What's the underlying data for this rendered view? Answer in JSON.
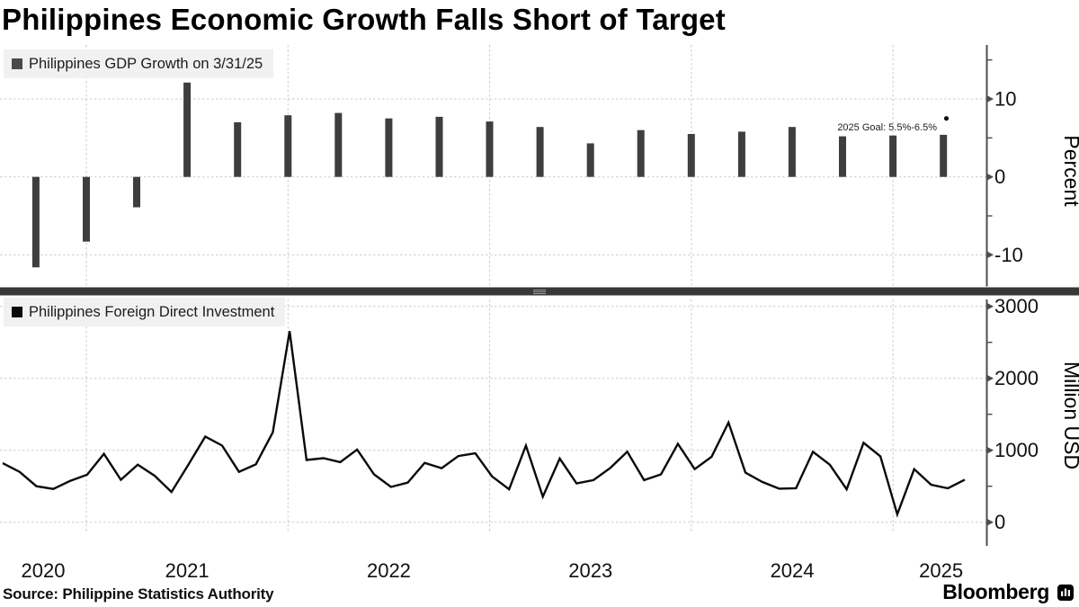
{
  "title": "Philippines Economic Growth Falls Short of Target",
  "source_note": "Source: Philippine Statistics Authority",
  "branding": {
    "logo_text": "Bloomberg",
    "logo_icon": "bar-chart-icon"
  },
  "x_axis": {
    "years": [
      "2020",
      "2021",
      "2022",
      "2023",
      "2024",
      "2025"
    ]
  },
  "colors": {
    "bar": "#3e3e3e",
    "line": "#0a0a0a",
    "gdp_swatch": "#4a4a4a",
    "fdi_swatch": "#0a0a0a",
    "axis": "#4d4d4d",
    "gridline": "#cbcbcb",
    "tick_text": "#111111",
    "legend_bg": "#f0f0f0",
    "divider": "#383838",
    "divider_grip": "#9a9a9a",
    "annotation_text": "#222222"
  },
  "chart_data": [
    {
      "type": "bar",
      "panel": "top",
      "legend": "Philippines GDP Growth on 3/31/25",
      "ylabel": "Percent",
      "ylim": [
        -14.5,
        17
      ],
      "yticks": [
        10,
        0,
        -10
      ],
      "ytick_labels": [
        "10",
        "0",
        "-10"
      ],
      "yticks_minor": [
        15,
        5,
        -5
      ],
      "grid": true,
      "categories": [
        "Q3 2020",
        "Q4 2020",
        "Q1 2021",
        "Q2 2021",
        "Q3 2021",
        "Q4 2021",
        "Q1 2022",
        "Q2 2022",
        "Q3 2022",
        "Q4 2022",
        "Q1 2023",
        "Q2 2023",
        "Q3 2023",
        "Q4 2023",
        "Q1 2024",
        "Q2 2024",
        "Q3 2024",
        "Q4 2024",
        "Q1 2025"
      ],
      "values": [
        -11.6,
        -8.3,
        -3.9,
        12.1,
        7.0,
        7.9,
        8.2,
        7.5,
        7.7,
        7.1,
        6.4,
        4.3,
        6.0,
        5.5,
        5.8,
        6.4,
        5.2,
        5.3,
        5.4
      ],
      "annotation": {
        "text": "2025 Goal: 5.5%-6.5%",
        "dot_value_pct": 7.5
      }
    },
    {
      "type": "line",
      "panel": "bottom",
      "legend": "Philippines Foreign Direct Investment",
      "ylabel": "Million USD",
      "ylim": [
        -340,
        3100
      ],
      "yticks": [
        3000,
        2000,
        1000,
        0
      ],
      "ytick_labels": [
        "3000",
        "2000",
        "1000",
        "0"
      ],
      "yticks_minor": [
        2500,
        1500,
        500
      ],
      "grid": true,
      "x_span": "Jul 2020 - Apr 2025, monthly",
      "values": [
        820,
        700,
        500,
        463,
        575,
        660,
        950,
        590,
        800,
        646,
        420,
        800,
        1190,
        1065,
        700,
        805,
        1250,
        2655,
        865,
        890,
        835,
        1010,
        665,
        490,
        550,
        825,
        750,
        920,
        958,
        635,
        458,
        1065,
        355,
        885,
        540,
        585,
        755,
        980,
        585,
        665,
        1090,
        738,
        910,
        1385,
        690,
        560,
        466,
        472,
        979,
        800,
        458,
        1104,
        916,
        110,
        737,
        521,
        471,
        591
      ]
    }
  ]
}
